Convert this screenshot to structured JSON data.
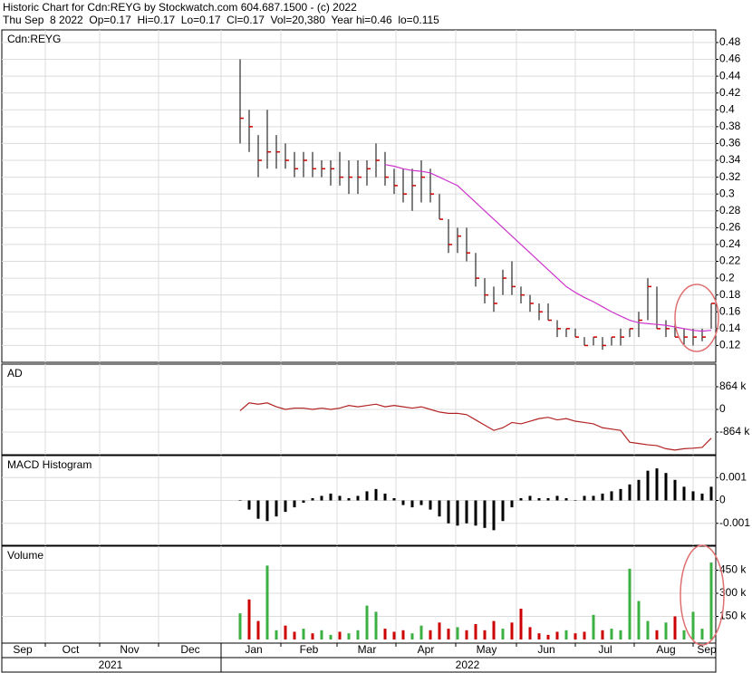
{
  "header": {
    "line1": "Historic Chart for Cdn:REYG by Stockwatch.com 604.687.1500 - (c) 2022",
    "line2": "Thu Sep  8 2022  Op=0.17  Hi=0.17  Lo=0.17  Cl=0.17  Vol=20,380  Year hi=0.46  lo=0.115"
  },
  "x_axis": {
    "months": [
      "Sep",
      "Oct",
      "Nov",
      "Dec",
      "Jan",
      "Feb",
      "Mar",
      "Apr",
      "May",
      "Jun",
      "Jul",
      "Aug",
      "Sep"
    ],
    "years": [
      "2021",
      "2022"
    ]
  },
  "chart_data": [
    {
      "type": "ohlc",
      "title": "Cdn:REYG",
      "ylim": [
        0.1,
        0.495
      ],
      "grid": true,
      "yticks": [
        0.12,
        0.14,
        0.16,
        0.18,
        0.2,
        0.22,
        0.24,
        0.26,
        0.28,
        0.3,
        0.32,
        0.34,
        0.36,
        0.38,
        0.4,
        0.42,
        0.44,
        0.46,
        0.48
      ],
      "color": "#000000",
      "close_color": "#cc0000",
      "ma_color": "#cc33cc",
      "high": [
        0.46,
        0.4,
        0.37,
        0.4,
        0.37,
        0.36,
        0.35,
        0.35,
        0.35,
        0.34,
        0.34,
        0.35,
        0.34,
        0.34,
        0.34,
        0.36,
        0.35,
        0.33,
        0.33,
        0.33,
        0.34,
        0.33,
        0.3,
        0.27,
        0.26,
        0.26,
        0.23,
        0.2,
        0.19,
        0.21,
        0.22,
        0.19,
        0.18,
        0.17,
        0.17,
        0.15,
        0.14,
        0.14,
        0.13,
        0.13,
        0.13,
        0.13,
        0.14,
        0.14,
        0.16,
        0.2,
        0.19,
        0.15,
        0.15,
        0.14,
        0.14,
        0.14,
        0.17
      ],
      "low": [
        0.36,
        0.35,
        0.32,
        0.33,
        0.33,
        0.33,
        0.32,
        0.32,
        0.32,
        0.32,
        0.31,
        0.31,
        0.3,
        0.3,
        0.31,
        0.32,
        0.31,
        0.3,
        0.29,
        0.28,
        0.29,
        0.29,
        0.27,
        0.23,
        0.23,
        0.22,
        0.19,
        0.17,
        0.16,
        0.18,
        0.18,
        0.17,
        0.16,
        0.15,
        0.15,
        0.13,
        0.13,
        0.13,
        0.12,
        0.12,
        0.115,
        0.12,
        0.12,
        0.13,
        0.13,
        0.15,
        0.14,
        0.13,
        0.13,
        0.12,
        0.12,
        0.125,
        0.14
      ],
      "close": [
        0.39,
        0.38,
        0.34,
        0.35,
        0.35,
        0.34,
        0.33,
        0.34,
        0.33,
        0.33,
        0.33,
        0.32,
        0.32,
        0.32,
        0.33,
        0.34,
        0.32,
        0.31,
        0.3,
        0.31,
        0.32,
        0.3,
        0.27,
        0.24,
        0.25,
        0.23,
        0.2,
        0.18,
        0.17,
        0.2,
        0.19,
        0.18,
        0.17,
        0.16,
        0.15,
        0.14,
        0.14,
        0.13,
        0.12,
        0.13,
        0.12,
        0.13,
        0.13,
        0.14,
        0.15,
        0.19,
        0.14,
        0.14,
        0.13,
        0.13,
        0.13,
        0.13,
        0.17
      ],
      "ma_values": [
        null,
        null,
        null,
        null,
        null,
        null,
        null,
        null,
        null,
        null,
        null,
        null,
        null,
        null,
        null,
        null,
        0.335,
        0.333,
        0.33,
        0.328,
        0.327,
        0.325,
        0.32,
        0.315,
        0.31,
        0.3,
        0.29,
        0.28,
        0.27,
        0.26,
        0.25,
        0.24,
        0.23,
        0.22,
        0.21,
        0.2,
        0.19,
        0.183,
        0.177,
        0.172,
        0.166,
        0.16,
        0.155,
        0.15,
        0.147,
        0.146,
        0.145,
        0.144,
        0.142,
        0.14,
        0.138,
        0.137,
        0.138
      ]
    },
    {
      "type": "line",
      "title": "AD",
      "ylim": [
        -1728000,
        1728000
      ],
      "grid": true,
      "color": "#b22222",
      "yticks": [
        {
          "value": 864000,
          "label": "864 k"
        },
        0,
        {
          "value": -864000,
          "label": "-864 k"
        }
      ],
      "values": [
        -50000,
        250000,
        200000,
        250000,
        100000,
        0,
        50000,
        50000,
        0,
        50000,
        0,
        50000,
        150000,
        100000,
        150000,
        200000,
        100000,
        150000,
        100000,
        50000,
        100000,
        0,
        -100000,
        -150000,
        -150000,
        -200000,
        -400000,
        -600000,
        -800000,
        -700000,
        -500000,
        -550000,
        -450000,
        -350000,
        -300000,
        -400000,
        -350000,
        -450000,
        -500000,
        -550000,
        -700000,
        -750000,
        -800000,
        -1250000,
        -1300000,
        -1350000,
        -1380000,
        -1500000,
        -1550000,
        -1500000,
        -1480000,
        -1450000,
        -1100000
      ]
    },
    {
      "type": "bar",
      "title": "MACD Histogram",
      "ylim": [
        -0.00196,
        0.00196
      ],
      "grid": true,
      "color": "#000000",
      "yticks": [
        0.001,
        0,
        -0.001
      ],
      "values": [
        0,
        -0.0004,
        -0.0008,
        -0.0009,
        -0.0007,
        -0.0005,
        -0.0003,
        -0.0001,
        0.0001,
        0.0002,
        0.0003,
        0.0002,
        0.0001,
        0.0002,
        0.0004,
        0.0005,
        0.0003,
        0.0001,
        -0.0002,
        -0.0003,
        -0.0002,
        -0.0004,
        -0.0007,
        -0.001,
        -0.0011,
        -0.001,
        -0.0011,
        -0.0012,
        -0.0013,
        -0.0009,
        -0.0003,
        0.0001,
        0.0002,
        0.0001,
        0.0001,
        0.0002,
        0.0001,
        0,
        0.0002,
        0.0002,
        0.0003,
        0.0004,
        0.0005,
        0.0007,
        0.0009,
        0.0013,
        0.0014,
        0.0012,
        0.0009,
        0.0006,
        0.0004,
        0.0003,
        0.0006
      ]
    },
    {
      "type": "volume",
      "title": "Volume",
      "ylim": [
        0,
        606000
      ],
      "grid": true,
      "up_color": "#3cb043",
      "down_color": "#cc0000",
      "yticks": [
        {
          "value": 450000,
          "label": "450 k"
        },
        {
          "value": 300000,
          "label": "300 k"
        },
        {
          "value": 150000,
          "label": "150 k"
        }
      ],
      "values": [
        170000,
        260000,
        120000,
        480000,
        60000,
        90000,
        50000,
        70000,
        40000,
        60000,
        30000,
        50000,
        40000,
        60000,
        220000,
        180000,
        70000,
        50000,
        60000,
        40000,
        90000,
        60000,
        110000,
        70000,
        80000,
        60000,
        100000,
        60000,
        120000,
        70000,
        110000,
        200000,
        80000,
        40000,
        30000,
        50000,
        60000,
        40000,
        50000,
        160000,
        60000,
        70000,
        60000,
        460000,
        250000,
        120000,
        60000,
        110000,
        150000,
        60000,
        180000,
        70000,
        500000
      ]
    }
  ]
}
